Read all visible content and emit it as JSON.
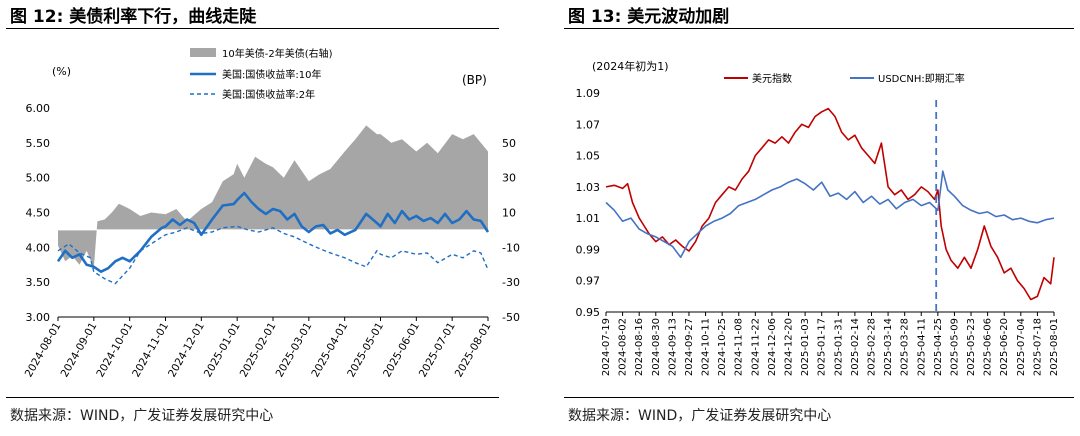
{
  "chart_data": [
    {
      "type": "line",
      "title": "图 12: 美债利率下行，曲线走陡",
      "source": "数据来源：WIND，广发证券发展研究中心",
      "left_unit": "(%)",
      "right_unit": "(BP)",
      "left_ylim": [
        3.0,
        6.0
      ],
      "left_ticks": [
        "6.00",
        "5.50",
        "5.00",
        "4.50",
        "4.00",
        "3.50",
        "3.00"
      ],
      "right_ylim": [
        -50,
        70
      ],
      "right_ticks": [
        "50",
        "30",
        "10",
        "-10",
        "-30",
        "-50"
      ],
      "x_ticks": [
        "2024-08-01",
        "2024-09-01",
        "2024-10-01",
        "2024-11-01",
        "2024-12-01",
        "2025-01-01",
        "2025-02-01",
        "2025-03-01",
        "2025-04-01",
        "2025-05-01",
        "2025-06-01",
        "2025-07-01",
        "2025-08-01"
      ],
      "legend": "top-center",
      "series": [
        {
          "name": "10年美债-2年美债(右轴)",
          "kind": "area",
          "axis": "right",
          "color": "#a6a6a6",
          "x": [
            0,
            0.2,
            0.4,
            0.6,
            0.8,
            1.0,
            1.1,
            1.3,
            1.5,
            1.7,
            2.0,
            2.3,
            2.6,
            3.0,
            3.3,
            3.6,
            4.0,
            4.3,
            4.6,
            4.9,
            5.0,
            5.2,
            5.5,
            5.8,
            6.0,
            6.3,
            6.6,
            7.0,
            7.3,
            7.6,
            8.0,
            8.3,
            8.6,
            8.9,
            9.0,
            9.3,
            9.6,
            10.0,
            10.3,
            10.6,
            11.0,
            11.3,
            11.6,
            12.0
          ],
          "values": [
            -9,
            -18,
            -15,
            -20,
            -12,
            -22,
            5,
            6,
            10,
            15,
            12,
            8,
            10,
            9,
            12,
            5,
            12,
            16,
            28,
            32,
            38,
            30,
            42,
            38,
            36,
            30,
            40,
            28,
            32,
            35,
            45,
            52,
            60,
            55,
            55,
            50,
            52,
            45,
            50,
            44,
            55,
            52,
            55,
            45
          ]
        },
        {
          "name": "美国:国债收益率:10年",
          "kind": "line",
          "axis": "left",
          "color": "#1f6fc4",
          "width": 2.6,
          "x": [
            0,
            0.2,
            0.4,
            0.6,
            0.8,
            1.0,
            1.2,
            1.4,
            1.6,
            1.8,
            2.0,
            2.3,
            2.6,
            2.9,
            3.0,
            3.2,
            3.4,
            3.6,
            3.8,
            4.0,
            4.3,
            4.6,
            4.9,
            5.0,
            5.2,
            5.4,
            5.6,
            5.8,
            6.0,
            6.2,
            6.4,
            6.6,
            6.8,
            7.0,
            7.2,
            7.4,
            7.6,
            7.8,
            8.0,
            8.3,
            8.6,
            8.9,
            9.0,
            9.2,
            9.4,
            9.6,
            9.8,
            10.0,
            10.2,
            10.4,
            10.6,
            10.8,
            11.0,
            11.2,
            11.4,
            11.6,
            11.8,
            12.0
          ],
          "values": [
            3.8,
            3.95,
            3.85,
            3.9,
            3.75,
            3.72,
            3.65,
            3.7,
            3.8,
            3.85,
            3.8,
            3.95,
            4.15,
            4.28,
            4.3,
            4.4,
            4.32,
            4.4,
            4.35,
            4.18,
            4.4,
            4.6,
            4.62,
            4.68,
            4.78,
            4.65,
            4.55,
            4.48,
            4.55,
            4.52,
            4.4,
            4.48,
            4.3,
            4.22,
            4.3,
            4.32,
            4.2,
            4.25,
            4.18,
            4.25,
            4.48,
            4.35,
            4.3,
            4.48,
            4.35,
            4.52,
            4.4,
            4.45,
            4.38,
            4.42,
            4.35,
            4.48,
            4.35,
            4.4,
            4.52,
            4.4,
            4.38,
            4.22
          ]
        },
        {
          "name": "美国:国债收益率:2年",
          "kind": "line",
          "axis": "left",
          "color": "#1f6fc4",
          "width": 1.4,
          "dashed": true,
          "x": [
            0,
            0.3,
            0.6,
            0.9,
            1.0,
            1.3,
            1.6,
            2.0,
            2.3,
            2.6,
            2.9,
            3.0,
            3.3,
            3.6,
            4.0,
            4.3,
            4.6,
            5.0,
            5.3,
            5.6,
            6.0,
            6.3,
            6.6,
            7.0,
            7.3,
            7.6,
            8.0,
            8.3,
            8.6,
            8.9,
            9.0,
            9.3,
            9.6,
            10.0,
            10.3,
            10.6,
            11.0,
            11.3,
            11.6,
            11.8,
            12.0
          ],
          "values": [
            3.95,
            4.05,
            3.92,
            3.85,
            3.65,
            3.55,
            3.48,
            3.7,
            3.95,
            4.05,
            4.15,
            4.18,
            4.22,
            4.28,
            4.2,
            4.22,
            4.28,
            4.3,
            4.25,
            4.22,
            4.28,
            4.2,
            4.15,
            4.05,
            3.98,
            3.92,
            3.85,
            3.78,
            3.72,
            3.95,
            3.9,
            3.85,
            3.95,
            3.9,
            3.92,
            3.78,
            3.9,
            3.85,
            3.95,
            3.92,
            3.68
          ]
        }
      ]
    },
    {
      "type": "line",
      "title": "图 13: 美元波动加剧",
      "source": "数据来源：WIND，广发证券发展研究中心",
      "unit_note": "(2024年初为1)",
      "ylim": [
        0.95,
        1.09
      ],
      "y_ticks": [
        "1.09",
        "1.07",
        "1.05",
        "1.03",
        "1.01",
        "0.99",
        "0.97",
        "0.95"
      ],
      "x_ticks": [
        "2024-07-19",
        "2024-08-02",
        "2024-08-16",
        "2024-08-30",
        "2024-09-13",
        "2024-09-27",
        "2024-10-11",
        "2024-10-25",
        "2024-11-08",
        "2024-11-22",
        "2024-12-06",
        "2024-12-20",
        "2025-01-03",
        "2025-01-17",
        "2025-01-31",
        "2025-02-14",
        "2025-02-28",
        "2025-03-14",
        "2025-03-28",
        "2025-04-11",
        "2025-04-25",
        "2025-05-09",
        "2025-05-23",
        "2025-06-06",
        "2025-06-20",
        "2025-07-04",
        "2025-07-18",
        "2025-08-01"
      ],
      "vline_x": 19.9,
      "legend": "top",
      "series": [
        {
          "name": "美元指数",
          "color": "#c00000",
          "width": 1.6,
          "x": [
            0,
            0.5,
            1.0,
            1.3,
            1.6,
            2.0,
            2.3,
            2.6,
            3.0,
            3.4,
            3.8,
            4.2,
            4.6,
            5.0,
            5.4,
            5.8,
            6.2,
            6.6,
            7.0,
            7.4,
            7.8,
            8.2,
            8.6,
            9.0,
            9.4,
            9.8,
            10.2,
            10.6,
            11.0,
            11.4,
            11.8,
            12.2,
            12.6,
            13.0,
            13.4,
            13.8,
            14.2,
            14.6,
            15.0,
            15.4,
            15.8,
            16.2,
            16.6,
            17.0,
            17.4,
            17.8,
            18.2,
            18.6,
            19.0,
            19.4,
            19.8,
            20.0,
            20.2,
            20.5,
            20.8,
            21.2,
            21.6,
            22.0,
            22.4,
            22.8,
            23.2,
            23.6,
            24.0,
            24.4,
            24.8,
            25.2,
            25.6,
            26.0,
            26.4,
            26.8,
            27.0
          ],
          "values": [
            1.03,
            1.031,
            1.029,
            1.032,
            1.02,
            1.01,
            1.005,
            1.0,
            0.995,
            0.998,
            0.993,
            0.996,
            0.992,
            0.989,
            0.995,
            1.005,
            1.01,
            1.02,
            1.025,
            1.03,
            1.028,
            1.035,
            1.04,
            1.05,
            1.055,
            1.06,
            1.058,
            1.062,
            1.058,
            1.065,
            1.07,
            1.068,
            1.075,
            1.078,
            1.08,
            1.075,
            1.065,
            1.06,
            1.063,
            1.055,
            1.05,
            1.045,
            1.058,
            1.03,
            1.025,
            1.028,
            1.022,
            1.025,
            1.03,
            1.027,
            1.022,
            1.028,
            1.005,
            0.99,
            0.983,
            0.978,
            0.985,
            0.978,
            0.99,
            1.005,
            0.992,
            0.985,
            0.975,
            0.978,
            0.97,
            0.965,
            0.958,
            0.96,
            0.972,
            0.968,
            0.985
          ]
        },
        {
          "name": "USDCNH:即期汇率",
          "color": "#4472c4",
          "width": 1.6,
          "x": [
            0,
            0.5,
            1.0,
            1.5,
            2.0,
            2.5,
            3.0,
            3.5,
            4.0,
            4.5,
            5.0,
            5.5,
            6.0,
            6.5,
            7.0,
            7.5,
            8.0,
            8.5,
            9.0,
            9.5,
            10.0,
            10.5,
            11.0,
            11.5,
            12.0,
            12.5,
            13.0,
            13.5,
            14.0,
            14.5,
            15.0,
            15.5,
            16.0,
            16.5,
            17.0,
            17.5,
            18.0,
            18.5,
            19.0,
            19.5,
            20.0,
            20.3,
            20.6,
            21.0,
            21.5,
            22.0,
            22.5,
            23.0,
            23.5,
            24.0,
            24.5,
            25.0,
            25.5,
            26.0,
            26.5,
            27.0
          ],
          "values": [
            1.02,
            1.015,
            1.008,
            1.01,
            1.003,
            1.0,
            0.998,
            0.995,
            0.992,
            0.985,
            0.995,
            1.0,
            1.005,
            1.008,
            1.01,
            1.013,
            1.018,
            1.02,
            1.022,
            1.025,
            1.028,
            1.03,
            1.033,
            1.035,
            1.032,
            1.028,
            1.033,
            1.024,
            1.026,
            1.022,
            1.027,
            1.02,
            1.024,
            1.019,
            1.022,
            1.016,
            1.02,
            1.022,
            1.018,
            1.02,
            1.015,
            1.04,
            1.028,
            1.024,
            1.018,
            1.015,
            1.013,
            1.014,
            1.011,
            1.012,
            1.009,
            1.01,
            1.008,
            1.007,
            1.009,
            1.01
          ]
        }
      ]
    }
  ]
}
